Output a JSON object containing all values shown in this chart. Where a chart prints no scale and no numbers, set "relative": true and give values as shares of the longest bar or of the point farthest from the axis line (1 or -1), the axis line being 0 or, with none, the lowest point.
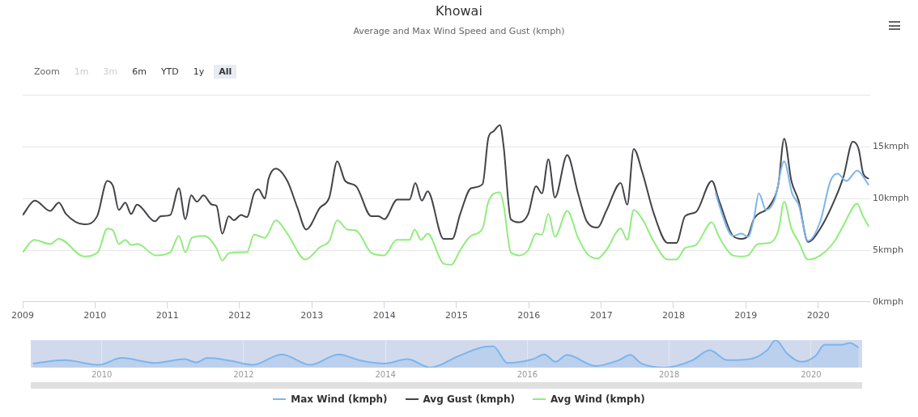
{
  "chart_data": [
    {
      "type": "line",
      "title": "Khowai",
      "subtitle": "Average and Max Wind Speed and Gust (kmph)",
      "annotations": [
        "Zoom",
        "1m",
        "3m",
        "6m",
        "YTD",
        "1y",
        "All"
      ],
      "xlim": [
        2009,
        2020.72
      ],
      "xticks": [
        2009,
        2010,
        2011,
        2012,
        2013,
        2014,
        2015,
        2016,
        2017,
        2018,
        2019,
        2020
      ],
      "ylim": [
        0,
        20
      ],
      "yticks": [
        {
          "value": 0,
          "label": "0kmph"
        },
        {
          "value": 5,
          "label": "5kmph"
        },
        {
          "value": 10,
          "label": "10kmph"
        },
        {
          "value": 15,
          "label": "15kmph"
        },
        {
          "value": 20,
          "label": null
        }
      ],
      "grid": "y",
      "legend": "bottom",
      "marker": "none",
      "line_style": "solid",
      "series": [
        {
          "name": "Max Wind (kmph)",
          "color": "#7cb5ec",
          "x": [
            2018.58,
            2018.63,
            2018.82,
            2018.94,
            2019.03,
            2019.11,
            2019.18,
            2019.28,
            2019.4,
            2019.53,
            2019.64,
            2019.73,
            2019.86,
            2020.03,
            2020.17,
            2020.27,
            2020.39,
            2020.54,
            2020.7
          ],
          "values": [
            10.6,
            9.4,
            6.4,
            6.6,
            6.3,
            8.0,
            10.5,
            8.9,
            9.9,
            13.6,
            10.5,
            9.4,
            5.9,
            7.8,
            11.7,
            12.4,
            11.7,
            12.7,
            11.3
          ]
        },
        {
          "name": "Avg Gust (kmph)",
          "color": "#434348",
          "x": [
            2009.0,
            2009.17,
            2009.38,
            2009.5,
            2009.6,
            2009.85,
            2010.03,
            2010.17,
            2010.25,
            2010.33,
            2010.42,
            2010.5,
            2010.58,
            2010.83,
            2010.91,
            2011.04,
            2011.16,
            2011.25,
            2011.33,
            2011.41,
            2011.5,
            2011.62,
            2011.68,
            2011.76,
            2011.85,
            2011.92,
            2012.02,
            2012.1,
            2012.2,
            2012.26,
            2012.35,
            2012.4,
            2012.5,
            2012.66,
            2012.8,
            2012.92,
            2013.11,
            2013.24,
            2013.35,
            2013.46,
            2013.61,
            2013.82,
            2013.92,
            2014.0,
            2014.18,
            2014.35,
            2014.43,
            2014.52,
            2014.6,
            2014.82,
            2014.94,
            2015.05,
            2015.2,
            2015.36,
            2015.44,
            2015.51,
            2015.6,
            2015.65,
            2015.75,
            2015.87,
            2015.99,
            2016.1,
            2016.18,
            2016.27,
            2016.36,
            2016.53,
            2016.68,
            2016.8,
            2016.95,
            2017.07,
            2017.27,
            2017.36,
            2017.45,
            2017.57,
            2017.73,
            2017.92,
            2018.04,
            2018.16,
            2018.31,
            2018.53,
            2018.63,
            2018.82,
            2018.94,
            2019.03,
            2019.11,
            2019.33,
            2019.45,
            2019.53,
            2019.63,
            2019.73,
            2019.86,
            2020.03,
            2020.23,
            2020.35,
            2020.48,
            2020.56,
            2020.62,
            2020.7
          ],
          "values": [
            8.4,
            9.8,
            8.8,
            9.6,
            8.5,
            7.5,
            8.3,
            11.7,
            11.2,
            8.9,
            9.6,
            8.5,
            9.4,
            7.8,
            8.3,
            8.4,
            11.0,
            8.0,
            10.3,
            9.7,
            10.3,
            9.4,
            9.3,
            6.6,
            8.3,
            7.9,
            8.4,
            8.2,
            10.5,
            10.9,
            10.0,
            11.9,
            12.9,
            11.7,
            9.1,
            7.0,
            9.1,
            10.1,
            13.6,
            11.7,
            11.2,
            8.3,
            8.3,
            8.0,
            9.9,
            9.9,
            11.5,
            9.8,
            10.7,
            6.1,
            6.1,
            8.5,
            11.0,
            11.4,
            15.9,
            16.5,
            17.1,
            15.1,
            8.0,
            7.7,
            8.5,
            11.2,
            10.5,
            13.8,
            10.1,
            14.2,
            10.5,
            7.8,
            7.2,
            8.8,
            11.5,
            9.4,
            14.8,
            12.5,
            8.5,
            5.7,
            5.7,
            8.3,
            8.7,
            11.7,
            9.8,
            6.4,
            6.1,
            6.4,
            8.0,
            9.3,
            11.4,
            15.8,
            11.7,
            9.8,
            5.8,
            7.1,
            9.9,
            12.1,
            15.5,
            14.8,
            12.5,
            11.9
          ]
        },
        {
          "name": "Avg Wind (kmph)",
          "color": "#90ed7d",
          "x": [
            2009.0,
            2009.16,
            2009.38,
            2009.5,
            2009.85,
            2010.04,
            2010.17,
            2010.25,
            2010.33,
            2010.42,
            2010.5,
            2010.59,
            2010.84,
            2011.04,
            2011.16,
            2011.25,
            2011.34,
            2011.51,
            2011.68,
            2011.76,
            2011.85,
            2012.02,
            2012.1,
            2012.2,
            2012.35,
            2012.5,
            2012.66,
            2012.91,
            2013.11,
            2013.24,
            2013.35,
            2013.49,
            2013.61,
            2013.83,
            2014.0,
            2014.17,
            2014.35,
            2014.42,
            2014.51,
            2014.6,
            2014.82,
            2014.93,
            2015.05,
            2015.2,
            2015.36,
            2015.44,
            2015.6,
            2015.65,
            2015.75,
            2015.87,
            2015.99,
            2016.1,
            2016.18,
            2016.27,
            2016.36,
            2016.53,
            2016.68,
            2016.8,
            2016.95,
            2017.07,
            2017.27,
            2017.36,
            2017.45,
            2017.57,
            2017.73,
            2017.92,
            2018.04,
            2018.16,
            2018.31,
            2018.53,
            2018.63,
            2018.82,
            2018.94,
            2019.03,
            2019.17,
            2019.33,
            2019.45,
            2019.53,
            2019.63,
            2019.73,
            2019.86,
            2020.03,
            2020.23,
            2020.35,
            2020.54,
            2020.62,
            2020.7
          ],
          "values": [
            4.8,
            6.0,
            5.6,
            6.1,
            4.4,
            4.8,
            7.1,
            6.9,
            5.6,
            6.0,
            5.5,
            5.6,
            4.5,
            4.8,
            6.4,
            4.8,
            6.2,
            6.4,
            5.2,
            4.0,
            4.7,
            4.8,
            4.8,
            6.5,
            6.2,
            7.9,
            6.6,
            4.1,
            5.3,
            5.9,
            7.9,
            7.0,
            6.9,
            4.7,
            4.5,
            6.0,
            6.0,
            7.0,
            6.0,
            6.6,
            3.7,
            3.6,
            5.0,
            6.4,
            7.1,
            9.7,
            10.6,
            9.4,
            4.8,
            4.5,
            5.0,
            6.6,
            6.5,
            8.5,
            6.3,
            8.8,
            6.2,
            4.7,
            4.2,
            5.0,
            7.1,
            6.0,
            8.9,
            8.0,
            5.8,
            4.1,
            4.1,
            5.2,
            5.5,
            7.7,
            6.3,
            4.5,
            4.4,
            4.5,
            5.6,
            5.7,
            6.9,
            9.7,
            7.1,
            5.8,
            4.1,
            4.5,
            5.9,
            7.4,
            9.5,
            8.3,
            7.3
          ]
        }
      ]
    },
    {
      "type": "area",
      "relative": true,
      "xlim": [
        2009,
        2020.72
      ],
      "xticks": [
        2010,
        2012,
        2014,
        2016,
        2018,
        2020
      ],
      "grid": "x",
      "tick_labels": "x",
      "marker": "none",
      "series": [
        {
          "color": "#7cb5ec",
          "x": [
            2009.03,
            2009.48,
            2009.96,
            2010.28,
            2010.76,
            2011.17,
            2011.33,
            2011.49,
            2011.81,
            2012.13,
            2012.54,
            2012.94,
            2013.34,
            2013.66,
            2013.99,
            2014.31,
            2014.63,
            2015.03,
            2015.35,
            2015.52,
            2015.72,
            2016.08,
            2016.24,
            2016.4,
            2016.56,
            2016.96,
            2017.29,
            2017.45,
            2017.61,
            2017.93,
            2018.33,
            2018.57,
            2018.82,
            2019.14,
            2019.38,
            2019.5,
            2019.66,
            2019.86,
            2020.06,
            2020.19,
            2020.43,
            2020.55,
            2020.67
          ],
          "values": [
            0.15,
            0.27,
            0.1,
            0.35,
            0.17,
            0.31,
            0.19,
            0.35,
            0.25,
            0.1,
            0.48,
            0.1,
            0.48,
            0.25,
            0.15,
            0.31,
            0,
            0.42,
            0.73,
            0.77,
            0.17,
            0.31,
            0.48,
            0.21,
            0.46,
            0.06,
            0.27,
            0.46,
            0.15,
            0,
            0.27,
            0.63,
            0.27,
            0.31,
            0.63,
            1,
            0.52,
            0.21,
            0.42,
            0.83,
            0.83,
            0.9,
            0.73
          ]
        }
      ]
    }
  ]
}
